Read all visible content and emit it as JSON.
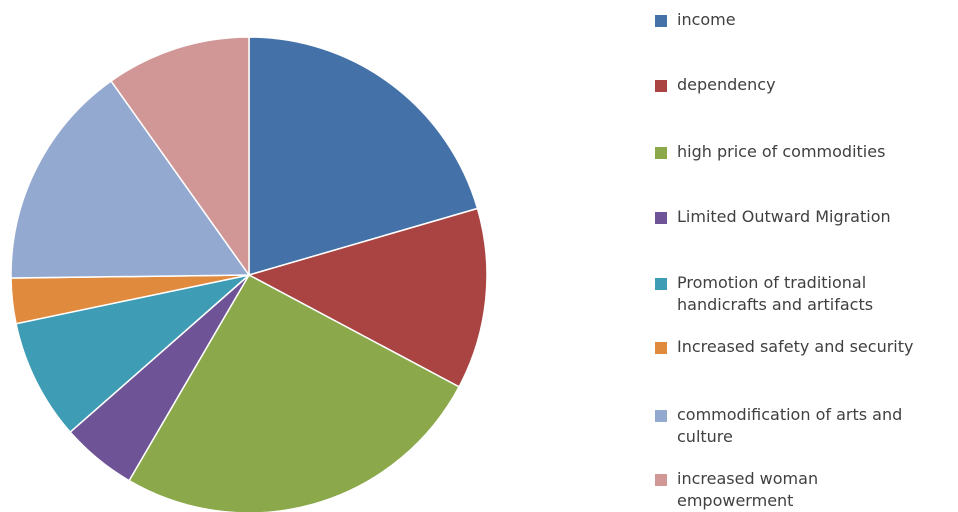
{
  "chart_data": {
    "type": "pie",
    "title": "",
    "legend_position": "right",
    "categories": [
      "income",
      "dependency",
      "high price of commodities",
      "Limited Outward Migration",
      "Promotion of traditional\nhandicrafts and artifacts",
      "Increased safety and security",
      "commodification of arts and\nculture",
      "increased woman\nempowerment"
    ],
    "values": [
      20,
      12,
      25,
      5,
      8,
      3,
      15,
      9.6
    ],
    "colors": [
      "#4472A8",
      "#A94442",
      "#8BA84A",
      "#6E5496",
      "#3F9CB5",
      "#E08A3D",
      "#94A9D0",
      "#D19696"
    ]
  }
}
